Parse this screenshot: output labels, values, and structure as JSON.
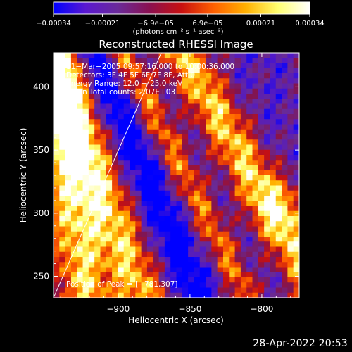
{
  "chart_data": {
    "type": "heatmap",
    "title": "Reconstructed RHESSI Image",
    "xlabel": "Heliocentric X (arcsec)",
    "ylabel": "Heliocentric Y (arcsec)",
    "xlim": [
      -945,
      -774
    ],
    "ylim": [
      233,
      427
    ],
    "x_ticks": [
      -900,
      -850,
      -800
    ],
    "x_tick_labels": [
      "−900",
      "−850",
      "−800"
    ],
    "y_ticks": [
      250,
      300,
      350,
      400
    ],
    "y_tick_labels": [
      "250",
      "300",
      "350",
      "400"
    ],
    "colorbar": {
      "ticks": [
        -0.00034,
        -0.00021,
        -6.9e-05,
        6.9e-05,
        0.00021,
        0.00034
      ],
      "tick_labels": [
        "−0.00034",
        "−0.00021",
        "−6.9e−05",
        "6.9e−05",
        "0.00021",
        "0.00034"
      ],
      "range": [
        -0.00034,
        0.00034
      ],
      "unit_label": "(photons cm⁻² s⁻¹ asec⁻²)",
      "colors": [
        "#0000ff",
        "#5a18d0",
        "#6a2a9a",
        "#8a1050",
        "#c81010",
        "#ff6000",
        "#ffb000",
        "#ffff70",
        "#ffffff"
      ]
    },
    "annotations": [
      "11−Mar−2005 09:57:16.000 to 10:00:36.000",
      "Detectors: 3F 4F 5F 6F 7F 8F, Att 0",
      "Energy Range: 12.0 − 25.0 keV",
      "Clean      Total counts: 2.07E+03"
    ],
    "peak_label": "Position of Peak = [−781,307]",
    "peak_position": [
      -781,
      307
    ],
    "limb_line": [
      [
        -945,
        233
      ],
      [
        -870,
        427
      ]
    ],
    "grid": false,
    "resolution": [
      42,
      48
    ],
    "ridges": [
      {
        "a": -0.14,
        "x0": -925,
        "y0": 250,
        "w": 14,
        "amp": 1.0
      },
      {
        "a": -0.33,
        "x0": -905,
        "y0": 300,
        "w": 13,
        "amp": 0.95
      },
      {
        "a": -0.38,
        "x0": -870,
        "y0": 300,
        "w": 9,
        "amp": -0.55
      },
      {
        "a": -0.45,
        "x0": -840,
        "y0": 300,
        "w": 8,
        "amp": 0.75
      },
      {
        "a": -0.5,
        "x0": -793,
        "y0": 302,
        "w": 13,
        "amp": 1.0
      }
    ]
  },
  "footer": {
    "timestamp": "28-Apr-2022 20:53"
  }
}
